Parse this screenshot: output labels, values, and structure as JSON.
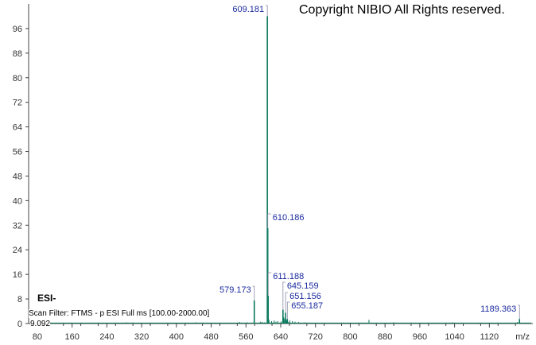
{
  "copyright": "Copyright NIBIO All Rights reserved.",
  "mode": "ESI-",
  "scan_filter": "Scan Filter: FTMS - p ESI Full ms [100.00-2000.00]",
  "retention_time": "9.092",
  "colors": {
    "trace": "#0c7a5e",
    "label": "#1a2a9e",
    "axis": "#444444"
  },
  "chart_data": {
    "type": "line",
    "xlabel": "m/z",
    "ylabel": "",
    "xlim": [
      60,
      1220
    ],
    "ylim": [
      0,
      104
    ],
    "x_ticks": [
      80,
      160,
      240,
      320,
      400,
      480,
      560,
      640,
      720,
      800,
      880,
      960,
      1040,
      1120
    ],
    "y_ticks": [
      0,
      8,
      16,
      24,
      32,
      40,
      48,
      56,
      64,
      72,
      80,
      88,
      96
    ],
    "peaks": [
      {
        "mz": 579.173,
        "intensity": 7.5,
        "label": "579.173"
      },
      {
        "mz": 609.181,
        "intensity": 100,
        "label": "609.181"
      },
      {
        "mz": 610.186,
        "intensity": 31,
        "label": "610.186"
      },
      {
        "mz": 611.188,
        "intensity": 9,
        "label": "611.188"
      },
      {
        "mz": 645.159,
        "intensity": 4.5,
        "label": "645.159"
      },
      {
        "mz": 651.156,
        "intensity": 3.5,
        "label": "651.156"
      },
      {
        "mz": 655.187,
        "intensity": 1.5,
        "label": "655.187"
      },
      {
        "mz": 1189.363,
        "intensity": 1.5,
        "label": "1189.363"
      }
    ],
    "minor_peaks": [
      {
        "mz": 285,
        "intensity": 0.4
      },
      {
        "mz": 300,
        "intensity": 0.3
      },
      {
        "mz": 445,
        "intensity": 0.4
      },
      {
        "mz": 490,
        "intensity": 0.3
      },
      {
        "mz": 545,
        "intensity": 0.5
      },
      {
        "mz": 563,
        "intensity": 0.4
      },
      {
        "mz": 593,
        "intensity": 0.6
      },
      {
        "mz": 597,
        "intensity": 0.5
      },
      {
        "mz": 603,
        "intensity": 0.4
      },
      {
        "mz": 613,
        "intensity": 1.2
      },
      {
        "mz": 619,
        "intensity": 0.8
      },
      {
        "mz": 625,
        "intensity": 1.0
      },
      {
        "mz": 629,
        "intensity": 0.6
      },
      {
        "mz": 633,
        "intensity": 0.8
      },
      {
        "mz": 641,
        "intensity": 0.7
      },
      {
        "mz": 647,
        "intensity": 2.0
      },
      {
        "mz": 649,
        "intensity": 1.5
      },
      {
        "mz": 653,
        "intensity": 1.0
      },
      {
        "mz": 657,
        "intensity": 0.6
      },
      {
        "mz": 661,
        "intensity": 1.0
      },
      {
        "mz": 667,
        "intensity": 0.8
      },
      {
        "mz": 673,
        "intensity": 0.6
      },
      {
        "mz": 681,
        "intensity": 0.5
      },
      {
        "mz": 695,
        "intensity": 0.4
      },
      {
        "mz": 705,
        "intensity": 0.3
      },
      {
        "mz": 843,
        "intensity": 1.2
      },
      {
        "mz": 900,
        "intensity": 0.4
      },
      {
        "mz": 1035,
        "intensity": 0.4
      },
      {
        "mz": 1185,
        "intensity": 0.5
      }
    ]
  }
}
